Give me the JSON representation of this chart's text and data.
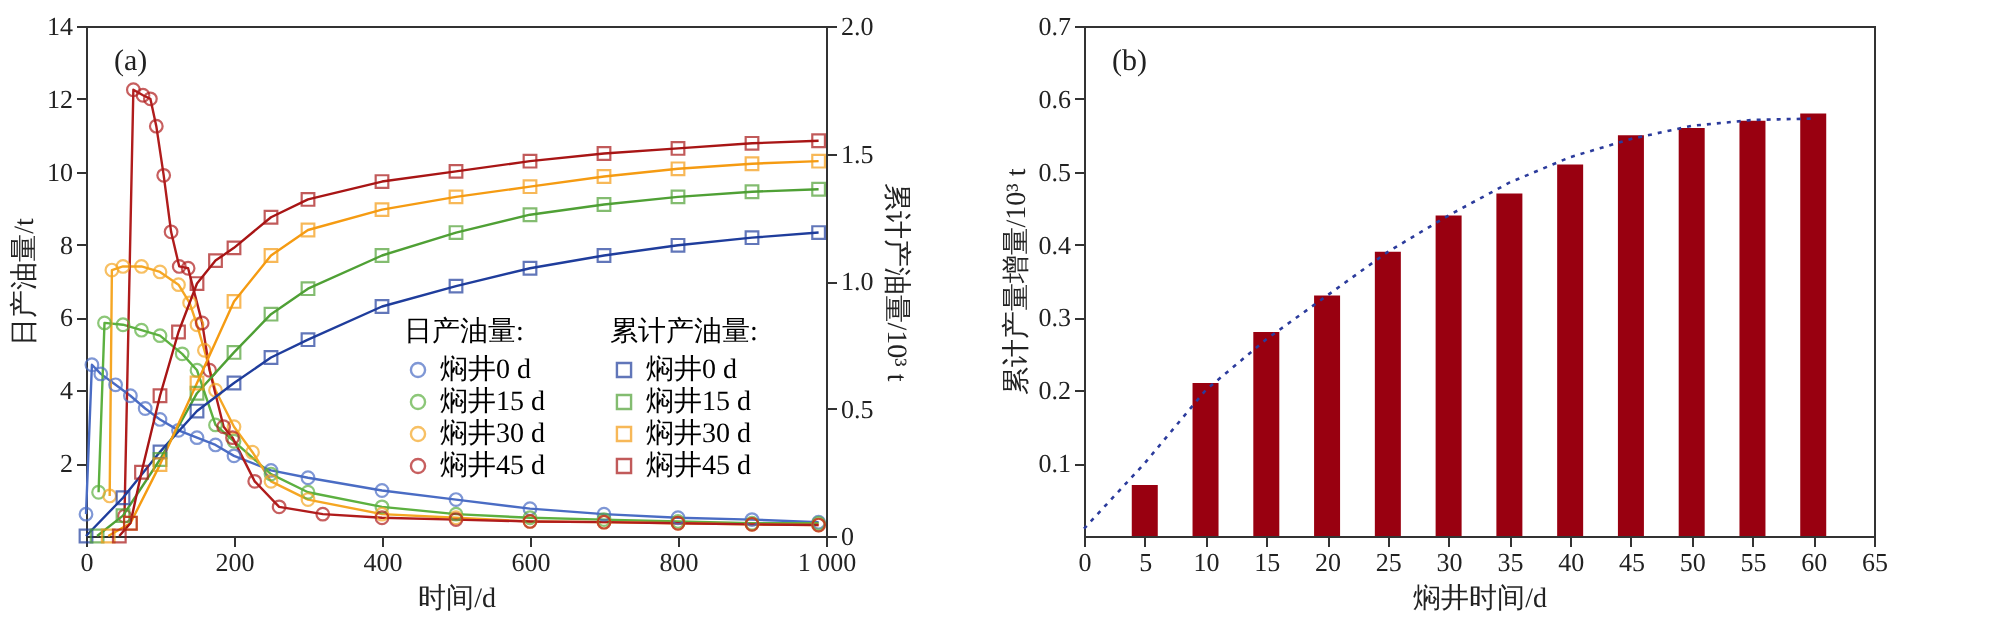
{
  "chart_data": [
    {
      "type": "line",
      "title": "(a)",
      "xlabel": "时间/d",
      "ylabel": "日产油量/t",
      "y2label": "累计产油量/10³ t",
      "legend_title": "日产油量:",
      "annotations": [
        "累计产油量:"
      ],
      "legend": "bottom right",
      "xlim": [
        0,
        1000
      ],
      "xticks": [
        0,
        200,
        400,
        600,
        800,
        {
          "value": 1000,
          "label": "1 000"
        }
      ],
      "ylim": [
        0,
        14
      ],
      "yticks": [
        2,
        4,
        6,
        8,
        10,
        12,
        14
      ],
      "y2lim": [
        0,
        2
      ],
      "y2ticks": [
        0,
        0.5,
        {
          "value": 1,
          "label": "1.0"
        },
        1.5,
        {
          "value": 2,
          "label": "2.0"
        }
      ],
      "series": [
        {
          "name": "焖井0 d",
          "color": "#4a6cc4",
          "marker": "circle",
          "x": [
            0,
            8,
            20,
            40,
            60,
            80,
            100,
            125,
            150,
            175,
            200,
            250,
            300,
            400,
            500,
            600,
            700,
            800,
            900,
            990
          ],
          "values": [
            0.6,
            4.7,
            4.45,
            4.15,
            3.85,
            3.5,
            3.2,
            2.9,
            2.7,
            2.5,
            2.2,
            1.8,
            1.6,
            1.25,
            1.0,
            0.75,
            0.6,
            0.5,
            0.45,
            0.38
          ]
        },
        {
          "name": "焖井15 d",
          "color": "#5cb040",
          "marker": "circle",
          "x": [
            17,
            25,
            50,
            75,
            100,
            130,
            150,
            175,
            200,
            250,
            300,
            400,
            500,
            600,
            700,
            800,
            900,
            990
          ],
          "values": [
            1.2,
            5.85,
            5.8,
            5.65,
            5.5,
            5.0,
            4.55,
            3.05,
            2.6,
            1.7,
            1.2,
            0.8,
            0.6,
            0.5,
            0.45,
            0.4,
            0.35,
            0.35
          ]
        },
        {
          "name": "焖井30 d",
          "color": "#f5a623",
          "marker": "circle",
          "x": [
            32,
            35,
            50,
            75,
            100,
            125,
            140,
            150,
            160,
            175,
            200,
            225,
            250,
            300,
            400,
            500,
            600,
            700,
            800,
            900,
            990
          ],
          "values": [
            1.1,
            7.3,
            7.4,
            7.4,
            7.25,
            6.9,
            6.4,
            5.8,
            5.1,
            4.0,
            3.0,
            2.3,
            1.5,
            1.0,
            0.6,
            0.5,
            0.4,
            0.38,
            0.35,
            0.32,
            0.3
          ]
        },
        {
          "name": "焖井45 d",
          "color": "#b01c1c",
          "marker": "circle",
          "x": [
            52,
            64,
            77,
            87,
            95,
            105,
            115,
            126,
            138,
            157,
            167,
            186,
            198,
            228,
            261,
            320,
            400,
            500,
            600,
            700,
            800,
            900,
            990
          ],
          "values": [
            0.55,
            12.25,
            12.1,
            12.0,
            11.25,
            9.9,
            8.35,
            7.4,
            7.35,
            5.85,
            4.55,
            3.0,
            2.7,
            1.5,
            0.8,
            0.6,
            0.5,
            0.45,
            0.4,
            0.38,
            0.35,
            0.32,
            0.3
          ]
        },
        {
          "name": "焖井0 d",
          "color": "#1f3d9c",
          "marker": "square",
          "axis": "y2",
          "x": [
            0,
            50,
            100,
            150,
            200,
            250,
            300,
            400,
            500,
            600,
            700,
            800,
            900,
            990
          ],
          "values": [
            0,
            0.15,
            0.33,
            0.49,
            0.6,
            0.7,
            0.77,
            0.9,
            0.98,
            1.05,
            1.1,
            1.14,
            1.17,
            1.19
          ]
        },
        {
          "name": "焖井15 d",
          "color": "#4fa035",
          "marker": "square",
          "axis": "y2",
          "x": [
            15,
            50,
            100,
            150,
            200,
            250,
            300,
            400,
            500,
            600,
            700,
            800,
            900,
            990
          ],
          "values": [
            0,
            0.08,
            0.3,
            0.56,
            0.72,
            0.87,
            0.97,
            1.1,
            1.19,
            1.26,
            1.3,
            1.33,
            1.35,
            1.36
          ]
        },
        {
          "name": "焖井30 d",
          "color": "#f59b12",
          "marker": "square",
          "axis": "y2",
          "x": [
            30,
            60,
            100,
            150,
            200,
            250,
            300,
            400,
            500,
            600,
            700,
            800,
            900,
            990
          ],
          "values": [
            0,
            0.05,
            0.28,
            0.6,
            0.92,
            1.1,
            1.2,
            1.28,
            1.33,
            1.37,
            1.41,
            1.44,
            1.46,
            1.47
          ]
        },
        {
          "name": "焖井45 d",
          "color": "#a81515",
          "marker": "square",
          "axis": "y2",
          "x": [
            45,
            60,
            75,
            100,
            125,
            150,
            175,
            200,
            250,
            300,
            400,
            500,
            600,
            700,
            800,
            900,
            990
          ],
          "values": [
            0,
            0.05,
            0.25,
            0.55,
            0.8,
            0.99,
            1.08,
            1.13,
            1.25,
            1.32,
            1.39,
            1.43,
            1.47,
            1.5,
            1.52,
            1.54,
            1.55
          ]
        }
      ]
    },
    {
      "type": "bar",
      "title": "(b)",
      "xlabel": "焖井时间/d",
      "ylabel": "累计产量增量/10³ t",
      "xlim": [
        0,
        65
      ],
      "xticks": [
        0,
        5,
        10,
        15,
        20,
        25,
        30,
        35,
        40,
        45,
        50,
        55,
        60,
        65
      ],
      "ylim": [
        0,
        0.7
      ],
      "yticks": [
        0.1,
        0.2,
        0.3,
        0.4,
        0.5,
        0.6,
        0.7
      ],
      "x": [
        5,
        10,
        15,
        20,
        25,
        30,
        35,
        40,
        45,
        50,
        55,
        60
      ],
      "series": [
        {
          "color": "#990010",
          "values": [
            0.07,
            0.21,
            0.28,
            0.33,
            0.39,
            0.44,
            0.47,
            0.51,
            0.55,
            0.56,
            0.57,
            0.58
          ]
        },
        {
          "type": "line",
          "color": "#2b3b9c",
          "line_style": "dotted",
          "x": [
            0,
            5,
            10,
            15,
            20,
            25,
            30,
            35,
            40,
            45,
            50,
            55,
            60
          ],
          "values": [
            0.01,
            0.1,
            0.2,
            0.27,
            0.33,
            0.39,
            0.44,
            0.485,
            0.52,
            0.545,
            0.563,
            0.571,
            0.573
          ]
        }
      ]
    }
  ]
}
